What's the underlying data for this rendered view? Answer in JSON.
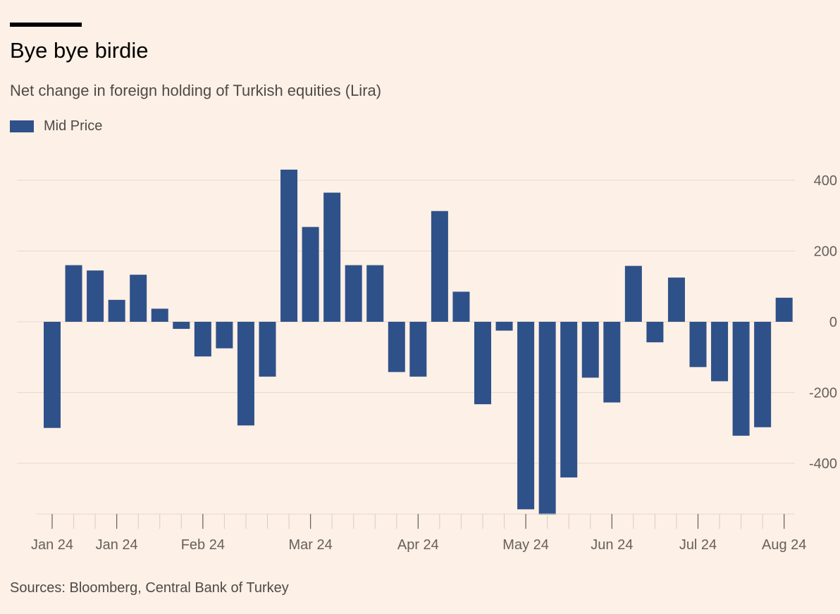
{
  "title": "Bye bye birdie",
  "subtitle": "Net change in foreign holding of Turkish equities (Lira)",
  "source": "Sources: Bloomberg, Central Bank of Turkey",
  "colors": {
    "background": "#fdf0e6",
    "bar": "#2f5189",
    "grid": "#e6d9ce",
    "axis": "#66605c"
  },
  "chart_data": {
    "type": "bar",
    "legend": [
      "Mid Price"
    ],
    "series": [
      {
        "name": "Mid Price",
        "values": [
          -300,
          160,
          145,
          62,
          133,
          37,
          -20,
          -98,
          -75,
          -293,
          -155,
          430,
          268,
          365,
          160,
          160,
          -142,
          -155,
          313,
          85,
          -233,
          -25,
          -530,
          -545,
          -440,
          -158,
          -228,
          158,
          -58,
          125,
          -128,
          -168,
          -322,
          -298,
          68
        ]
      }
    ],
    "ylim": [
      -545,
      430
    ],
    "yticks": [
      400,
      200,
      0,
      -200,
      -400
    ],
    "ytick_labels": [
      "400",
      "200",
      "0",
      "-200",
      "-400"
    ],
    "xtick_labels": [
      {
        "label": "Jan 24",
        "bar": 0
      },
      {
        "label": "Jan 24",
        "bar": 3
      },
      {
        "label": "Feb 24",
        "bar": 7
      },
      {
        "label": "Mar 24",
        "bar": 12
      },
      {
        "label": "Apr 24",
        "bar": 17
      },
      {
        "label": "May 24",
        "bar": 22
      },
      {
        "label": "Jun 24",
        "bar": 26
      },
      {
        "label": "Jul 24",
        "bar": 30
      },
      {
        "label": "Aug 24",
        "bar": 34
      }
    ],
    "grid": true,
    "legend_position": "top-left"
  }
}
